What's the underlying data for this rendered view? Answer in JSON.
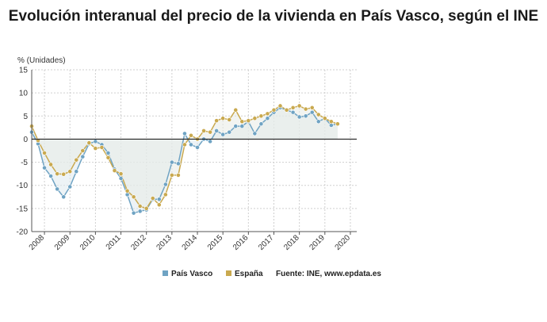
{
  "title": "Evolución interanual del precio de la vivienda en País Vasco, según el INE",
  "colors": {
    "pais_vasco": "#6fa3c3",
    "espana": "#c9a94f",
    "fill": "#e8ebe6",
    "zero_line": "#222222",
    "grid": "#cfcfcf"
  },
  "chart_data": {
    "type": "line",
    "ylabel": "% (Unidades)",
    "ylim": [
      -20,
      15
    ],
    "yticks": [
      15,
      10,
      5,
      0,
      -5,
      -10,
      -15,
      -20
    ],
    "xlim": [
      2007.5,
      2020.25
    ],
    "xticks": [
      "2008",
      "2009",
      "2010",
      "2011",
      "2012",
      "2013",
      "2014",
      "2015",
      "2016",
      "2017",
      "2018",
      "2019",
      "2020"
    ],
    "grid": true,
    "legend_position": "bottom",
    "source": "Fuente: INE, www.epdata.es",
    "series": [
      {
        "name": "País Vasco",
        "x": [
          2007.5,
          2007.75,
          2008.0,
          2008.25,
          2008.5,
          2008.75,
          2009.0,
          2009.25,
          2009.5,
          2009.75,
          2010.0,
          2010.25,
          2010.5,
          2010.75,
          2011.0,
          2011.25,
          2011.5,
          2011.75,
          2012.0,
          2012.25,
          2012.5,
          2012.75,
          2013.0,
          2013.25,
          2013.5,
          2013.75,
          2014.0,
          2014.25,
          2014.5,
          2014.75,
          2015.0,
          2015.25,
          2015.5,
          2015.75,
          2016.0,
          2016.25,
          2016.5,
          2016.75,
          2017.0,
          2017.25,
          2017.5,
          2017.75,
          2018.0,
          2018.25,
          2018.5,
          2018.75,
          2019.0,
          2019.25,
          2019.5,
          2019.75,
          2020.0
        ],
        "values": [
          1.5,
          -1.0,
          -6.2,
          -8.0,
          -10.8,
          -12.5,
          -10.3,
          -7.0,
          -3.8,
          -1.0,
          -0.5,
          -1.2,
          -3.0,
          -6.5,
          -8.5,
          -12.0,
          -16.0,
          -15.6,
          -15.3,
          -13.0,
          -13.0,
          -9.8,
          -5.0,
          -5.3,
          1.2,
          -1.2,
          -1.8,
          0.0,
          -0.5,
          1.8,
          1.0,
          1.5,
          2.8,
          2.8,
          3.8,
          1.2,
          3.3,
          4.5,
          5.8,
          6.8,
          6.3,
          5.8,
          4.8,
          5.0,
          5.8,
          3.8,
          4.5,
          3.0,
          3.3,
          null,
          null
        ]
      },
      {
        "name": "España",
        "x": [
          2007.5,
          2007.75,
          2008.0,
          2008.25,
          2008.5,
          2008.75,
          2009.0,
          2009.25,
          2009.5,
          2009.75,
          2010.0,
          2010.25,
          2010.5,
          2010.75,
          2011.0,
          2011.25,
          2011.5,
          2011.75,
          2012.0,
          2012.25,
          2012.5,
          2012.75,
          2013.0,
          2013.25,
          2013.5,
          2013.75,
          2014.0,
          2014.25,
          2014.5,
          2014.75,
          2015.0,
          2015.25,
          2015.5,
          2015.75,
          2016.0,
          2016.25,
          2016.5,
          2016.75,
          2017.0,
          2017.25,
          2017.5,
          2017.75,
          2018.0,
          2018.25,
          2018.5,
          2018.75,
          2019.0,
          2019.25,
          2019.5,
          2019.75,
          2020.0
        ],
        "values": [
          2.8,
          -0.3,
          -3.0,
          -5.5,
          -7.5,
          -7.6,
          -7.0,
          -4.5,
          -2.5,
          -0.8,
          -2.0,
          -1.8,
          -4.0,
          -6.8,
          -7.5,
          -11.2,
          -12.5,
          -14.5,
          -15.0,
          -12.8,
          -14.2,
          -12.0,
          -7.8,
          -7.8,
          -1.2,
          0.8,
          0.0,
          1.8,
          1.5,
          4.0,
          4.5,
          4.2,
          6.3,
          3.8,
          4.0,
          4.5,
          5.0,
          5.5,
          6.3,
          7.2,
          6.3,
          6.8,
          7.2,
          6.5,
          6.8,
          5.3,
          4.5,
          3.8,
          3.3,
          null,
          null
        ]
      }
    ]
  }
}
